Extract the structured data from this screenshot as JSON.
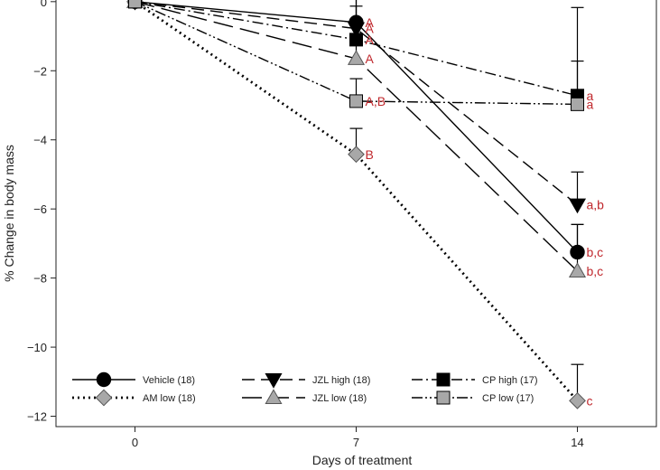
{
  "chart_data": {
    "type": "line",
    "title": "",
    "xlabel": "Days of treatment",
    "ylabel": "% Change in body mass",
    "x": [
      0,
      7,
      14
    ],
    "x_ticks": [
      "0",
      "7",
      "14"
    ],
    "xlim": [
      -2.5,
      16.5
    ],
    "ylim": [
      -12.3,
      0.1
    ],
    "y_ticks": [
      0,
      -2,
      -4,
      -6,
      -8,
      -10,
      -12
    ],
    "y_tick_labels": [
      "0",
      "−2",
      "−4",
      "−6",
      "−8",
      "−10",
      "−12"
    ],
    "grid": false,
    "legend_position": "bottom",
    "label_color": "#c0282d",
    "series": [
      {
        "name": "Vehicle (18)",
        "line": "solid",
        "marker": "circle",
        "fill": "#000000",
        "values": [
          0,
          -0.6,
          -7.25
        ],
        "error": [
          0,
          0.7,
          0.8
        ],
        "labels": [
          "",
          "A",
          "b,c"
        ]
      },
      {
        "name": "AM low (18)",
        "line": "dotted",
        "marker": "diamond",
        "fill": "#a8a8a8",
        "values": [
          0,
          -4.42,
          -11.55
        ],
        "error": [
          0,
          0.75,
          1.05
        ],
        "labels": [
          "",
          "B",
          "c"
        ]
      },
      {
        "name": "JZL high (18)",
        "line": "dashed",
        "marker": "triangle-down",
        "fill": "#000000",
        "values": [
          0,
          -0.78,
          -5.88
        ],
        "error": [
          0,
          0.65,
          0.95
        ],
        "labels": [
          "",
          "A",
          "a,b"
        ]
      },
      {
        "name": "JZL low (18)",
        "line": "longdash",
        "marker": "triangle-up",
        "fill": "#a8a8a8",
        "values": [
          0,
          -1.65,
          -7.8
        ],
        "error": [
          0,
          0.7,
          1.35
        ],
        "labels": [
          "",
          "A",
          "b,c"
        ]
      },
      {
        "name": "CP high (17)",
        "line": "dashdot",
        "marker": "square",
        "fill": "#000000",
        "values": [
          0,
          -1.1,
          -2.72
        ],
        "error": [
          0,
          1.2,
          2.55
        ],
        "labels": [
          "",
          "A",
          "a"
        ]
      },
      {
        "name": "CP low (17)",
        "line": "dashdotdot",
        "marker": "square",
        "fill": "#a8a8a8",
        "values": [
          0,
          -2.88,
          -2.97
        ],
        "error": [
          0,
          0.65,
          1.25
        ],
        "labels": [
          "",
          "A,B",
          "a"
        ]
      }
    ]
  }
}
